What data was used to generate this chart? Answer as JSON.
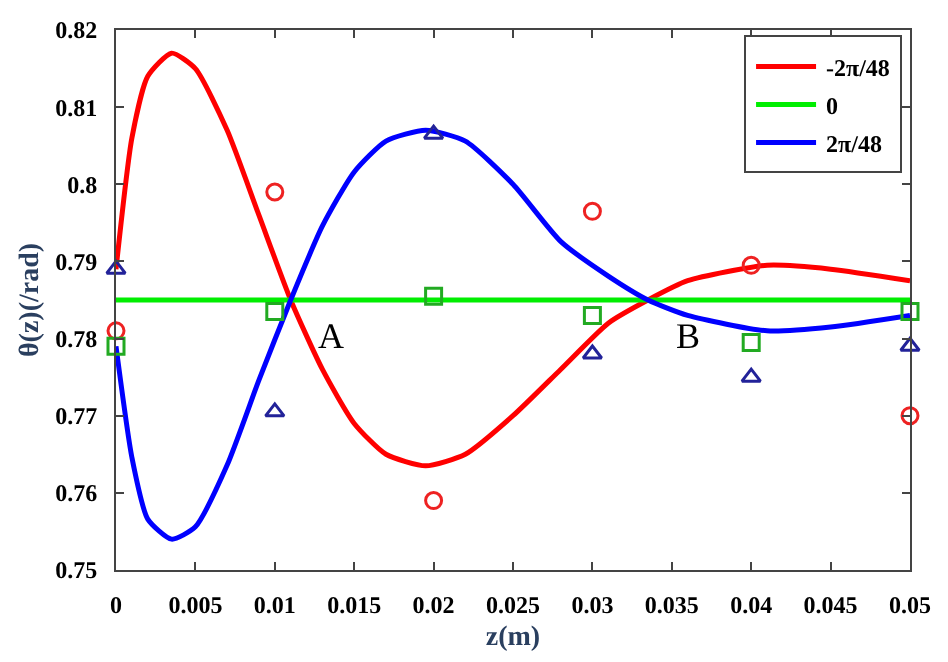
{
  "chart_data": {
    "type": "line",
    "xlabel": "z(m)",
    "ylabel": "θ(z)(/rad)",
    "xlim": [
      0,
      0.05
    ],
    "ylim": [
      0.75,
      0.82
    ],
    "xticks": [
      0,
      0.005,
      0.01,
      0.015,
      0.02,
      0.025,
      0.03,
      0.035,
      0.04,
      0.045,
      0.05
    ],
    "yticks": [
      0.75,
      0.76,
      0.77,
      0.78,
      0.79,
      0.8,
      0.81,
      0.82
    ],
    "legend": "top right",
    "marker": "none",
    "line_style": "solid",
    "series": [
      {
        "name": "-2π/48",
        "color": "#ff0000",
        "x": [
          0,
          0.001,
          0.002,
          0.0035,
          0.005,
          0.007,
          0.009,
          0.011,
          0.013,
          0.015,
          0.017,
          0.0195,
          0.022,
          0.025,
          0.028,
          0.031,
          0.0335,
          0.036,
          0.041,
          0.045,
          0.05
        ],
        "values": [
          0.789,
          0.806,
          0.814,
          0.817,
          0.815,
          0.807,
          0.796,
          0.785,
          0.776,
          0.769,
          0.765,
          0.7635,
          0.765,
          0.77,
          0.776,
          0.782,
          0.785,
          0.7875,
          0.7895,
          0.789,
          0.7875
        ]
      },
      {
        "name": "0",
        "color": "#00ee00",
        "x": [
          0,
          0.05
        ],
        "values": [
          0.785,
          0.785
        ]
      },
      {
        "name": "2π/48",
        "color": "#0000ff",
        "x": [
          0,
          0.001,
          0.002,
          0.0035,
          0.005,
          0.007,
          0.009,
          0.011,
          0.013,
          0.015,
          0.017,
          0.0195,
          0.022,
          0.025,
          0.028,
          0.031,
          0.0335,
          0.036,
          0.041,
          0.045,
          0.05
        ],
        "values": [
          0.779,
          0.7646,
          0.7566,
          0.754,
          0.7556,
          0.7636,
          0.7746,
          0.785,
          0.7946,
          0.8016,
          0.8056,
          0.807,
          0.8056,
          0.8,
          0.7926,
          0.7881,
          0.785,
          0.783,
          0.781,
          0.7815,
          0.783
        ]
      },
      {
        "type": "scatter",
        "marker": "circle",
        "color": "#ee2222",
        "x": [
          0,
          0.01,
          0.02,
          0.03,
          0.04,
          0.05
        ],
        "values": [
          0.781,
          0.799,
          0.759,
          0.7965,
          0.7895,
          0.77
        ]
      },
      {
        "type": "scatter",
        "marker": "square",
        "color": "#22aa22",
        "x": [
          0,
          0.01,
          0.02,
          0.03,
          0.04,
          0.05
        ],
        "values": [
          0.779,
          0.7835,
          0.7855,
          0.783,
          0.7795,
          0.7835
        ]
      },
      {
        "type": "scatter",
        "marker": "triangle",
        "color": "#222299",
        "x": [
          0,
          0.01,
          0.02,
          0.03,
          0.04,
          0.05
        ],
        "values": [
          0.789,
          0.7705,
          0.8065,
          0.778,
          0.775,
          0.779
        ]
      }
    ],
    "annotations": [
      {
        "text": "A",
        "x": 0.011,
        "y": 0.785
      },
      {
        "text": "B",
        "x": 0.0335,
        "y": 0.785
      }
    ]
  }
}
